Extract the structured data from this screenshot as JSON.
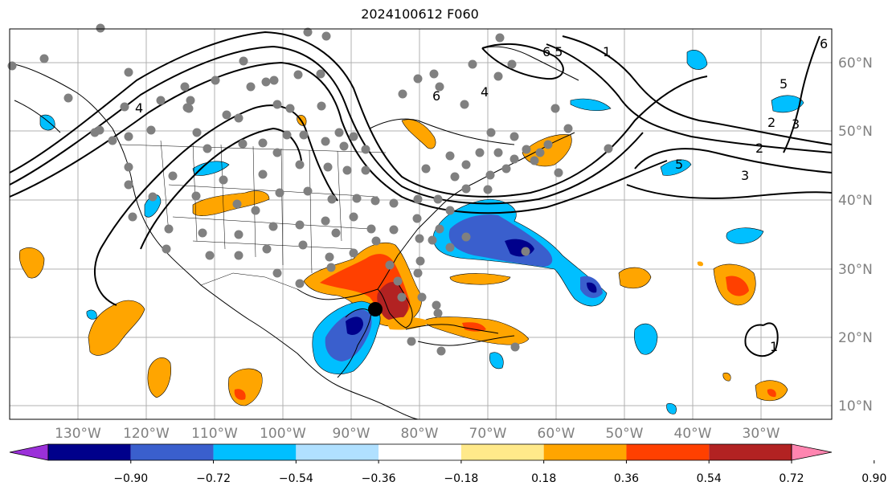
{
  "title": "2024100612 F060",
  "longitude_labels": [
    "130°W",
    "120°W",
    "110°W",
    "100°W",
    "90°W",
    "80°W",
    "70°W",
    "60°W",
    "50°W",
    "40°W",
    "30°W"
  ],
  "latitude_labels": [
    "60°N",
    "50°N",
    "40°N",
    "30°N",
    "20°N",
    "10°N"
  ],
  "colorbar": {
    "tick_labels": [
      "−0.90",
      "−0.72",
      "−0.54",
      "−0.36",
      "−0.18",
      "0.18",
      "0.36",
      "0.54",
      "0.72",
      "0.90"
    ],
    "colors": [
      "#9b30d9",
      "#00008b",
      "#3a5fcd",
      "#00bfff",
      "#b0e0ff",
      "#ffffff",
      "#ffe98a",
      "#ffa500",
      "#ff4000",
      "#b22222",
      "#ff85b0"
    ]
  },
  "contour_labels": [
    "1",
    "2",
    "3",
    "4",
    "5",
    "6",
    "6.5",
    "1",
    "2",
    "3",
    "4",
    "5",
    "6"
  ],
  "colors": {
    "grid": "#b0b0b0",
    "tick_text": "#808080",
    "station_dot": "#808080",
    "storm_marker": "#000000"
  }
}
